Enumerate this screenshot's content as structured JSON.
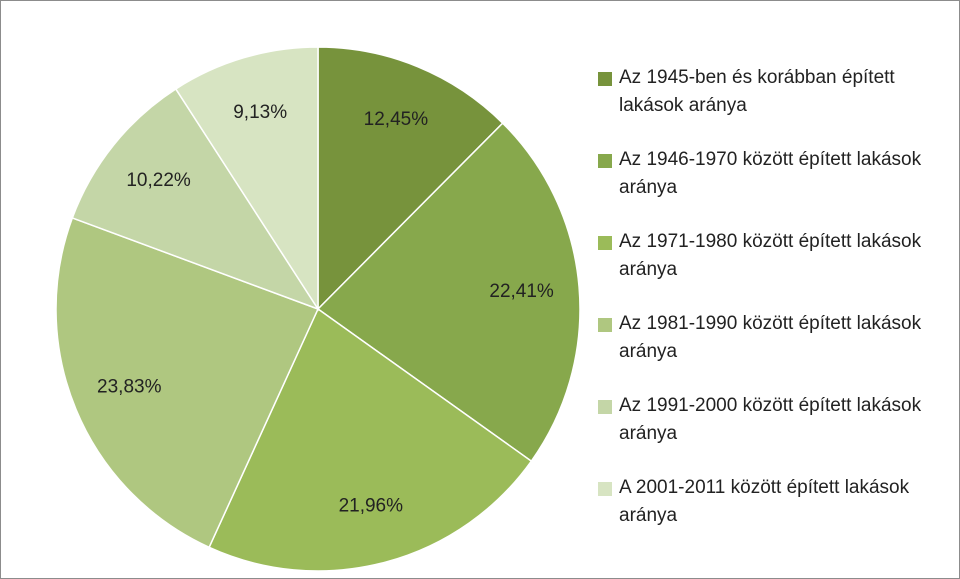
{
  "chart_data": {
    "type": "pie",
    "categories": [
      "Az 1945-ben és korábban épített lakások aránya",
      "Az 1946-1970 között épített lakások aránya",
      "Az 1971-1980 között épített lakások aránya",
      "Az 1981-1990 között épített lakások aránya",
      "Az 1991-2000 között épített lakások aránya",
      "A 2001-2011 között épített lakások aránya"
    ],
    "values": [
      12.45,
      22.41,
      21.96,
      23.83,
      10.22,
      9.13
    ],
    "value_labels": [
      "12,45%",
      "22,41%",
      "21,96%",
      "23,83%",
      "10,22%",
      "9,13%"
    ],
    "colors": [
      "#77933c",
      "#87a84c",
      "#9bbb59",
      "#afc780",
      "#c4d6a7",
      "#d7e4c2"
    ],
    "legend": "right"
  }
}
